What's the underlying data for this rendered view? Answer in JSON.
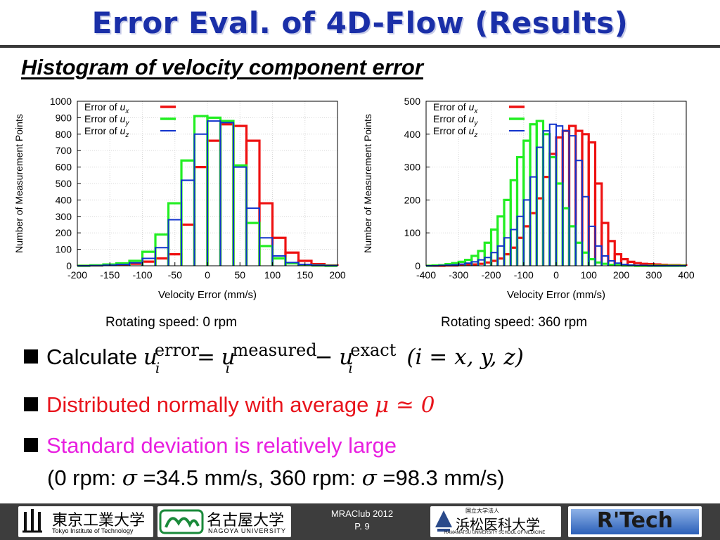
{
  "slide": {
    "title": "Error Eval. of 4D-Flow (Results)",
    "subtitle": "Histogram of velocity component error"
  },
  "captions": [
    "Rotating speed: 0 rpm",
    "Rotating speed: 360 rpm"
  ],
  "bullets": {
    "b1_lead": "Calculate",
    "b1_u": "u",
    "b1_sup_error": "error",
    "b1_sup_measured": "measured",
    "b1_sup_exact": "exact",
    "b1_sub": "i",
    "b1_eq": "=",
    "b1_minus": "−",
    "b1_tail": "(i = x, y, z)",
    "b2_text": "Distributed normally with average",
    "b2_math": "μ ≃ 0",
    "b3_text": "Standard deviation is relatively large",
    "b3_line2_a": "(0 rpm: ",
    "b3_sigma": "σ",
    "b3_line2_b": " =34.5 mm/s, 360 rpm: ",
    "b3_line2_c": " =98.3 mm/s)"
  },
  "footer": {
    "meta_line1": "MRAClub 2012",
    "meta_line2": "P. 9",
    "logo_titech_jp": "東京工業大学",
    "logo_titech_en": "Tokyo Institute of Technology",
    "logo_nagoya_jp": "名古屋大学",
    "logo_nagoya_en": "NAGOYA UNIVERSITY",
    "logo_hama_small": "国立大学法人",
    "logo_hama_jp": "浜松医科大学",
    "logo_hama_en": "HAMAMATSU UNIVERSITY SCHOOL OF MEDICINE",
    "logo_rtech": "R'Tech"
  },
  "colors": {
    "ux": "#ee1111",
    "uy": "#22ee22",
    "uz": "#1133cc",
    "title": "#1a2fa8"
  },
  "chart_data": [
    {
      "type": "bar",
      "xlabel": "Velocity Error (mm/s)",
      "ylabel": "Number of Measurement Points",
      "xlim": [
        -200,
        200
      ],
      "ylim": [
        0,
        1000
      ],
      "xticks": [
        -200,
        -150,
        -100,
        -50,
        0,
        50,
        100,
        150,
        200
      ],
      "yticks": [
        0,
        100,
        200,
        300,
        400,
        500,
        600,
        700,
        800,
        900,
        1000
      ],
      "bin_width": 20,
      "bin_centers": [
        -190,
        -170,
        -150,
        -130,
        -110,
        -90,
        -70,
        -50,
        -30,
        -10,
        10,
        30,
        50,
        70,
        90,
        110,
        130,
        150,
        170,
        190
      ],
      "legend_position": "top-left",
      "series": [
        {
          "name": "Error of u_x",
          "label_main": "Error of ",
          "label_var": "u",
          "label_sub": "x",
          "color": "#ee1111",
          "values": [
            0,
            2,
            5,
            8,
            12,
            25,
            45,
            70,
            250,
            600,
            760,
            860,
            850,
            760,
            380,
            170,
            80,
            30,
            10,
            2
          ]
        },
        {
          "name": "Error of u_y",
          "label_main": "Error of ",
          "label_var": "u",
          "label_sub": "y",
          "color": "#22ee22",
          "values": [
            0,
            3,
            8,
            15,
            30,
            85,
            190,
            380,
            640,
            910,
            900,
            880,
            610,
            260,
            120,
            45,
            15,
            5,
            2,
            0
          ]
        },
        {
          "name": "Error of u_z",
          "label_main": "Error of ",
          "label_var": "u",
          "label_sub": "z",
          "color": "#1133cc",
          "values": [
            0,
            1,
            4,
            8,
            18,
            45,
            110,
            280,
            520,
            800,
            880,
            870,
            600,
            350,
            170,
            60,
            20,
            8,
            3,
            1
          ]
        }
      ]
    },
    {
      "type": "bar",
      "xlabel": "Velocity Error (mm/s)",
      "ylabel": "Number of Measurement Points",
      "xlim": [
        -400,
        400
      ],
      "ylim": [
        0,
        500
      ],
      "xticks": [
        -400,
        -300,
        -200,
        -100,
        0,
        100,
        200,
        300,
        400
      ],
      "yticks": [
        0,
        100,
        200,
        300,
        400,
        500
      ],
      "bin_width": 20,
      "bin_centers": [
        -390,
        -370,
        -350,
        -330,
        -310,
        -290,
        -270,
        -250,
        -230,
        -210,
        -190,
        -170,
        -150,
        -130,
        -110,
        -90,
        -70,
        -50,
        -30,
        -10,
        10,
        30,
        50,
        70,
        90,
        110,
        130,
        150,
        170,
        190,
        210,
        230,
        250,
        270,
        290,
        310,
        330,
        350,
        370,
        390
      ],
      "legend_position": "top-left",
      "series": [
        {
          "name": "Error of u_x",
          "label_main": "Error of ",
          "label_var": "u",
          "label_sub": "x",
          "color": "#ee1111",
          "values": [
            0,
            0,
            0,
            1,
            1,
            2,
            3,
            4,
            6,
            10,
            15,
            22,
            35,
            55,
            85,
            120,
            160,
            205,
            270,
            340,
            390,
            410,
            425,
            410,
            400,
            375,
            250,
            130,
            75,
            35,
            20,
            12,
            8,
            6,
            5,
            4,
            3,
            2,
            2,
            1
          ]
        },
        {
          "name": "Error of u_y",
          "label_main": "Error of ",
          "label_var": "u",
          "label_sub": "y",
          "color": "#22ee22",
          "values": [
            0,
            1,
            2,
            5,
            8,
            12,
            18,
            30,
            45,
            70,
            110,
            150,
            200,
            260,
            330,
            380,
            430,
            440,
            400,
            330,
            250,
            175,
            120,
            70,
            40,
            20,
            10,
            6,
            3,
            2,
            1,
            1,
            0,
            0,
            0,
            0,
            0,
            0,
            0,
            0
          ]
        },
        {
          "name": "Error of u_z",
          "label_main": "Error of ",
          "label_var": "u",
          "label_sub": "z",
          "color": "#1133cc",
          "values": [
            0,
            0,
            1,
            2,
            3,
            5,
            8,
            12,
            18,
            25,
            40,
            60,
            85,
            110,
            150,
            200,
            270,
            360,
            410,
            430,
            425,
            410,
            395,
            320,
            210,
            120,
            60,
            30,
            15,
            8,
            4,
            2,
            1,
            1,
            0,
            0,
            0,
            0,
            0,
            0
          ]
        }
      ]
    }
  ]
}
